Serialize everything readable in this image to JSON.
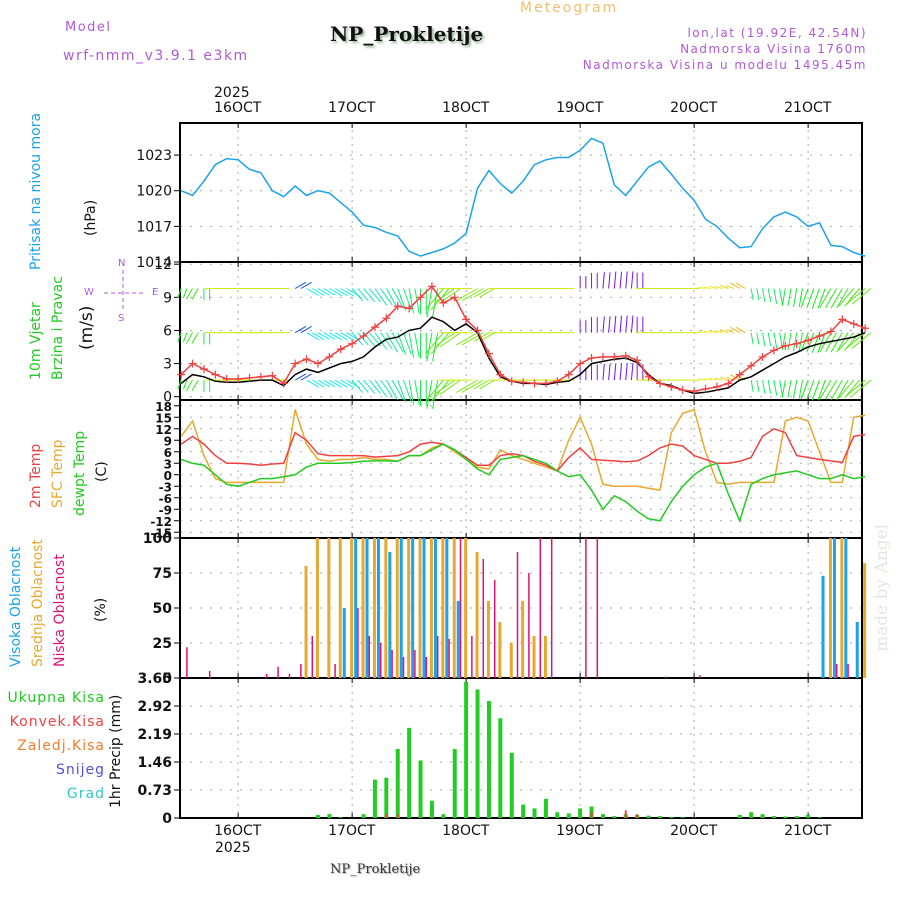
{
  "header": {
    "model_label": "Model",
    "model_name": "wrf-nmm_v3.9.1 e3km",
    "title": "NP_Prokletije",
    "subtitle": "Meteogram",
    "location": "lon,lat (19.92E, 42.54N)",
    "elevation": "Nadmorska Visina 1760m",
    "model_elevation": "Nadmorska Visina u modelu 1495.45m"
  },
  "time_axis": {
    "year": "2025",
    "labels": [
      "16OCT",
      "17OCT",
      "18OCT",
      "19OCT",
      "20OCT",
      "21OCT"
    ],
    "start_day": 15.5,
    "end_day": 21.5
  },
  "footer": {
    "station": "NP_Prokletije",
    "credit": "made by Angel"
  },
  "colors": {
    "pressure": "#1aa3ec",
    "t2m": "#f04040",
    "sfc": "#e8a830",
    "dewpt": "#20cc20",
    "high_cloud": "#1aa3ec",
    "mid_cloud": "#e8a830",
    "low_cloud": "#e0107a",
    "precip": "#22cc22",
    "conv": "#f04040",
    "gust": "#f04040",
    "wind_speed": "#000000"
  },
  "chart_data": [
    {
      "type": "line",
      "name": "pressure",
      "ylabel_main": "Pritisak na nivou mora",
      "ylabel_unit": "(hPa)",
      "yticks": [
        1014,
        1017,
        1020,
        1023
      ],
      "ytick_labels": [
        "1014",
        "1017",
        "1020",
        "1023"
      ],
      "ylim": [
        1014,
        1025.7
      ],
      "x_days": [
        15.5,
        15.6,
        15.7,
        15.8,
        15.9,
        16.0,
        16.1,
        16.2,
        16.3,
        16.4,
        16.5,
        16.6,
        16.7,
        16.8,
        16.9,
        17.0,
        17.1,
        17.2,
        17.3,
        17.4,
        17.5,
        17.6,
        17.7,
        17.8,
        17.9,
        18.0,
        18.1,
        18.2,
        18.3,
        18.4,
        18.5,
        18.6,
        18.7,
        18.8,
        18.9,
        19.0,
        19.1,
        19.2,
        19.3,
        19.4,
        19.5,
        19.6,
        19.7,
        19.8,
        19.9,
        20.0,
        20.1,
        20.2,
        20.3,
        20.4,
        20.5,
        20.6,
        20.7,
        20.8,
        20.9,
        21.0,
        21.1,
        21.2,
        21.3,
        21.4,
        21.5
      ],
      "values": [
        1020.0,
        1019.6,
        1020.8,
        1022.2,
        1022.7,
        1022.6,
        1021.8,
        1021.5,
        1020.0,
        1019.5,
        1020.4,
        1019.6,
        1020.0,
        1019.8,
        1019.0,
        1018.2,
        1017.1,
        1016.9,
        1016.5,
        1016.2,
        1014.9,
        1014.5,
        1014.8,
        1015.1,
        1015.6,
        1016.4,
        1020.2,
        1021.7,
        1020.6,
        1019.8,
        1020.8,
        1022.2,
        1022.6,
        1022.8,
        1022.8,
        1023.4,
        1024.4,
        1024.0,
        1020.5,
        1019.6,
        1020.8,
        1022.0,
        1022.5,
        1021.4,
        1020.2,
        1019.2,
        1017.6,
        1017.0,
        1016.0,
        1015.2,
        1015.3,
        1016.8,
        1017.8,
        1018.2,
        1017.8,
        1017.0,
        1017.3,
        1015.4,
        1015.3,
        1014.8,
        1014.5
      ]
    },
    {
      "type": "line",
      "name": "wind",
      "ylabel_main": "10m Vjetar",
      "ylabel_main2": "Brzina i Pravac",
      "ylabel_unit": "(m/s)",
      "compass": {
        "n": "N",
        "s": "S",
        "w": "W",
        "e": "E"
      },
      "yticks": [
        0,
        3,
        6,
        9,
        12
      ],
      "ytick_labels": [
        "0",
        "3",
        "6",
        "9",
        "12"
      ],
      "ylim": [
        -0.3,
        12.2
      ],
      "x_days": [
        15.5,
        15.6,
        15.7,
        15.8,
        15.9,
        16.0,
        16.1,
        16.2,
        16.3,
        16.4,
        16.5,
        16.6,
        16.7,
        16.8,
        16.9,
        17.0,
        17.1,
        17.2,
        17.3,
        17.4,
        17.5,
        17.6,
        17.7,
        17.8,
        17.9,
        18.0,
        18.1,
        18.2,
        18.3,
        18.4,
        18.5,
        18.6,
        18.7,
        18.8,
        18.9,
        19.0,
        19.1,
        19.2,
        19.3,
        19.4,
        19.5,
        19.6,
        19.7,
        19.8,
        19.9,
        20.0,
        20.1,
        20.2,
        20.3,
        20.4,
        20.5,
        20.6,
        20.7,
        20.8,
        20.9,
        21.0,
        21.1,
        21.2,
        21.3,
        21.4,
        21.5
      ],
      "speed": [
        1.2,
        2.0,
        1.8,
        1.4,
        1.3,
        1.3,
        1.4,
        1.5,
        1.5,
        1.0,
        2.0,
        2.5,
        2.2,
        2.6,
        3.0,
        3.2,
        3.6,
        4.5,
        5.2,
        5.4,
        6.0,
        6.2,
        7.2,
        6.8,
        6.0,
        6.6,
        5.8,
        3.5,
        1.8,
        1.4,
        1.2,
        1.2,
        1.1,
        1.3,
        1.4,
        2.0,
        3.0,
        3.2,
        3.4,
        3.5,
        3.1,
        2.0,
        1.2,
        1.0,
        0.6,
        0.3,
        0.4,
        0.6,
        0.8,
        1.5,
        1.8,
        2.4,
        3.0,
        3.6,
        4.0,
        4.5,
        4.8,
        5.0,
        5.2,
        5.4,
        5.8
      ],
      "gust": [
        2.0,
        3.0,
        2.5,
        2.0,
        1.6,
        1.6,
        1.7,
        1.8,
        1.9,
        1.2,
        3.0,
        3.4,
        3.0,
        3.6,
        4.3,
        4.8,
        5.5,
        6.3,
        7.1,
        8.2,
        8.0,
        9.0,
        10.0,
        8.5,
        9.0,
        7.0,
        6.0,
        3.9,
        2.0,
        1.4,
        1.3,
        1.2,
        1.2,
        1.4,
        2.0,
        3.0,
        3.5,
        3.6,
        3.6,
        3.7,
        3.3,
        1.8,
        1.2,
        0.9,
        0.6,
        0.5,
        0.7,
        0.9,
        1.2,
        2.0,
        2.8,
        3.6,
        4.2,
        4.6,
        4.8,
        5.1,
        5.5,
        5.9,
        7.0,
        6.6,
        6.2
      ],
      "direction_deg": [
        200,
        210,
        180,
        270,
        270,
        270,
        270,
        270,
        270,
        270,
        60,
        120,
        120,
        120,
        120,
        140,
        140,
        145,
        150,
        160,
        170,
        180,
        190,
        220,
        235,
        270,
        240,
        240,
        270,
        270,
        270,
        270,
        270,
        270,
        270,
        0,
        0,
        5,
        5,
        5,
        0,
        270,
        270,
        270,
        270,
        270,
        280,
        285,
        290,
        300,
        170,
        170,
        170,
        190,
        190,
        200,
        200,
        210,
        210,
        220,
        230
      ]
    },
    {
      "type": "line",
      "name": "temperature",
      "ylabel_lines": [
        "2m Temp",
        "SFC Temp",
        "dewpt Temp"
      ],
      "ylabel_unit": "(C)",
      "yticks": [
        -15,
        -12,
        -9,
        -6,
        -3,
        0,
        3,
        6,
        9,
        12,
        15,
        18
      ],
      "ytick_labels": [
        "-15",
        "-12",
        "-9",
        "-6",
        "-3",
        "0",
        "3",
        "6",
        "9",
        "12",
        "15",
        "18"
      ],
      "ylim": [
        -16.5,
        19.5
      ],
      "x_days": [
        15.5,
        15.6,
        15.7,
        15.8,
        15.9,
        16.0,
        16.1,
        16.2,
        16.3,
        16.4,
        16.5,
        16.6,
        16.7,
        16.8,
        16.9,
        17.0,
        17.1,
        17.2,
        17.3,
        17.4,
        17.5,
        17.6,
        17.7,
        17.8,
        17.9,
        18.0,
        18.1,
        18.2,
        18.3,
        18.4,
        18.5,
        18.6,
        18.7,
        18.8,
        18.9,
        19.0,
        19.1,
        19.2,
        19.3,
        19.4,
        19.5,
        19.6,
        19.7,
        19.8,
        19.9,
        20.0,
        20.1,
        20.2,
        20.3,
        20.4,
        20.5,
        20.6,
        20.7,
        20.8,
        20.9,
        21.0,
        21.1,
        21.2,
        21.3,
        21.4,
        21.5
      ],
      "t2m": [
        8,
        10,
        8,
        5,
        3,
        3,
        2.8,
        2.5,
        2.8,
        3,
        11,
        9,
        5.5,
        5,
        5,
        5,
        5,
        4.6,
        4.8,
        5,
        6,
        8,
        8.5,
        8,
        6.5,
        4.5,
        2.5,
        2.5,
        5,
        5.5,
        5,
        3.5,
        2.5,
        1,
        4.5,
        7,
        4,
        3.8,
        3.6,
        3.4,
        3.6,
        5,
        7,
        8,
        7.5,
        5,
        4,
        3,
        3,
        3.5,
        4.5,
        10,
        12,
        11,
        5,
        4.5,
        4,
        3.6,
        3.2,
        10,
        10.5
      ],
      "sfc": [
        10,
        14,
        5,
        -1,
        -2,
        -2,
        -2,
        -2,
        -2,
        -2,
        17,
        8,
        4,
        3.5,
        4,
        4,
        4.5,
        4,
        4,
        3.5,
        5,
        5,
        7,
        8,
        6,
        4,
        2,
        1.5,
        6.5,
        5,
        4,
        3,
        2,
        1,
        9,
        15,
        8,
        -2.5,
        -3,
        -3,
        -3,
        -3.5,
        -4,
        11,
        16,
        17,
        6,
        -2,
        -2.5,
        -2,
        -2,
        -2,
        -2,
        14,
        15,
        14,
        6,
        -2,
        -2,
        15,
        15.5
      ],
      "dewpt": [
        4,
        3,
        2.5,
        0,
        -2.5,
        -3,
        -2,
        -1,
        -1,
        -0.5,
        0,
        2,
        3,
        3,
        3,
        3.2,
        3.5,
        3.6,
        3.6,
        3.5,
        5,
        5,
        6.5,
        8,
        6.5,
        4,
        1.5,
        0,
        4,
        4.5,
        5,
        4,
        3,
        1,
        -0.5,
        0,
        -4,
        -9,
        -5.5,
        -7,
        -9.5,
        -11.5,
        -12,
        -7,
        -3,
        0,
        2,
        3,
        -5,
        -12,
        -2.5,
        -1,
        0,
        0.5,
        1,
        0,
        -1,
        -1,
        0,
        -1,
        -0.5
      ]
    },
    {
      "type": "bar",
      "name": "cloud_cover",
      "ylabel_lines": [
        "Visoka Oblacnost",
        "Srednja Oblacnost",
        "Niska Oblacnost"
      ],
      "ylabel_unit": "(%)",
      "yticks": [
        0,
        25,
        50,
        75,
        100
      ],
      "ytick_labels": [
        "0",
        "25",
        "50",
        "75",
        "100"
      ],
      "ylim": [
        0,
        100
      ],
      "x_days": [
        15.5,
        15.6,
        15.7,
        15.8,
        15.9,
        16.0,
        16.1,
        16.2,
        16.3,
        16.4,
        16.5,
        16.6,
        16.7,
        16.8,
        16.9,
        17.0,
        17.1,
        17.2,
        17.3,
        17.4,
        17.5,
        17.6,
        17.7,
        17.8,
        17.9,
        18.0,
        18.1,
        18.2,
        18.3,
        18.4,
        18.5,
        18.6,
        18.7,
        18.8,
        18.9,
        19.0,
        19.1,
        19.2,
        19.3,
        19.4,
        19.5,
        19.6,
        19.7,
        19.8,
        19.9,
        20.0,
        20.1,
        20.2,
        20.3,
        20.4,
        20.5,
        20.6,
        20.7,
        20.8,
        20.9,
        21.0,
        21.1,
        21.2,
        21.3,
        21.4,
        21.5
      ],
      "high": [
        0,
        0,
        0,
        0,
        0,
        0,
        0,
        0,
        0,
        0,
        0,
        0,
        0,
        0,
        50,
        100,
        100,
        100,
        90,
        100,
        100,
        100,
        100,
        100,
        55,
        0,
        0,
        0,
        0,
        0,
        0,
        0,
        0,
        0,
        0,
        0,
        0,
        0,
        0,
        0,
        0,
        0,
        0,
        0,
        0,
        0,
        0,
        0,
        0,
        0,
        0,
        0,
        0,
        0,
        0,
        0,
        73,
        100,
        100,
        40,
        0
      ],
      "mid": [
        0,
        0,
        0,
        0,
        0,
        0,
        0,
        0,
        0,
        0,
        0,
        80,
        100,
        100,
        100,
        100,
        100,
        100,
        100,
        100,
        100,
        100,
        100,
        100,
        100,
        100,
        90,
        55,
        40,
        25,
        55,
        30,
        30,
        0,
        0,
        0,
        0,
        0,
        0,
        0,
        0,
        0,
        0,
        0,
        0,
        0,
        0,
        0,
        0,
        0,
        0,
        0,
        0,
        0,
        0,
        0,
        0,
        100,
        100,
        0,
        82
      ],
      "low": [
        22,
        0,
        5,
        0,
        0,
        0,
        0,
        3,
        8,
        3,
        10,
        30,
        0,
        10,
        0,
        50,
        30,
        25,
        20,
        15,
        20,
        15,
        30,
        28,
        100,
        30,
        85,
        70,
        0,
        90,
        75,
        100,
        100,
        0,
        0,
        100,
        100,
        0,
        0,
        0,
        0,
        0,
        1,
        0,
        0,
        2,
        0,
        0,
        0,
        0,
        0,
        0,
        0,
        0,
        0,
        0,
        0,
        10,
        10,
        0,
        0
      ]
    },
    {
      "type": "bar",
      "name": "precipitation",
      "legend": [
        "Ukupna Kisa",
        "Konvek.Kisa",
        "Zaledj.Kisa",
        "Snijeg",
        "Grad"
      ],
      "ylabel": "1hr Precip (mm)",
      "yticks": [
        0,
        0.73,
        1.46,
        2.19,
        2.92,
        3.65
      ],
      "ytick_labels": [
        "0",
        "0.73",
        "1.46",
        "2.19",
        "2.92",
        "3.65"
      ],
      "ylim": [
        0,
        3.65
      ],
      "x_days": [
        15.5,
        15.6,
        15.7,
        15.8,
        15.9,
        16.0,
        16.1,
        16.2,
        16.3,
        16.4,
        16.5,
        16.6,
        16.7,
        16.8,
        16.9,
        17.0,
        17.1,
        17.2,
        17.3,
        17.4,
        17.5,
        17.6,
        17.7,
        17.8,
        17.9,
        18.0,
        18.1,
        18.2,
        18.3,
        18.4,
        18.5,
        18.6,
        18.7,
        18.8,
        18.9,
        19.0,
        19.1,
        19.2,
        19.3,
        19.4,
        19.5,
        19.6,
        19.7,
        19.8,
        19.9,
        20.0,
        20.1,
        20.2,
        20.3,
        20.4,
        20.5,
        20.6,
        20.7,
        20.8,
        20.9,
        21.0,
        21.1,
        21.2,
        21.3,
        21.4,
        21.5
      ],
      "total": [
        0,
        0,
        0,
        0,
        0,
        0,
        0,
        0,
        0,
        0,
        0,
        0,
        0.08,
        0.1,
        0.02,
        0,
        0.1,
        1.0,
        1.05,
        1.8,
        2.35,
        1.5,
        0.45,
        0.1,
        1.8,
        3.55,
        3.35,
        3.05,
        2.6,
        1.7,
        0.35,
        0.25,
        0.5,
        0.15,
        0.12,
        0.25,
        0.3,
        0.1,
        0.05,
        0.1,
        0.08,
        0.06,
        0.05,
        0.03,
        0.02,
        0.01,
        0,
        0,
        0,
        0.08,
        0.15,
        0.1,
        0.05,
        0.04,
        0.05,
        0.08,
        0.02,
        0,
        0,
        0,
        0
      ],
      "convective": [
        0,
        0,
        0,
        0,
        0,
        0,
        0,
        0,
        0,
        0,
        0,
        0,
        0,
        0,
        0,
        0,
        0,
        0,
        0.1,
        0.1,
        0,
        0,
        0,
        0,
        0,
        0,
        0,
        0,
        0,
        0,
        0,
        0,
        0,
        0,
        0,
        0,
        0.15,
        0,
        0,
        0.2,
        0.1,
        0,
        0,
        0,
        0,
        0,
        0,
        0,
        0,
        0,
        0,
        0,
        0,
        0,
        0,
        0,
        0,
        0,
        0,
        0,
        0
      ]
    }
  ]
}
